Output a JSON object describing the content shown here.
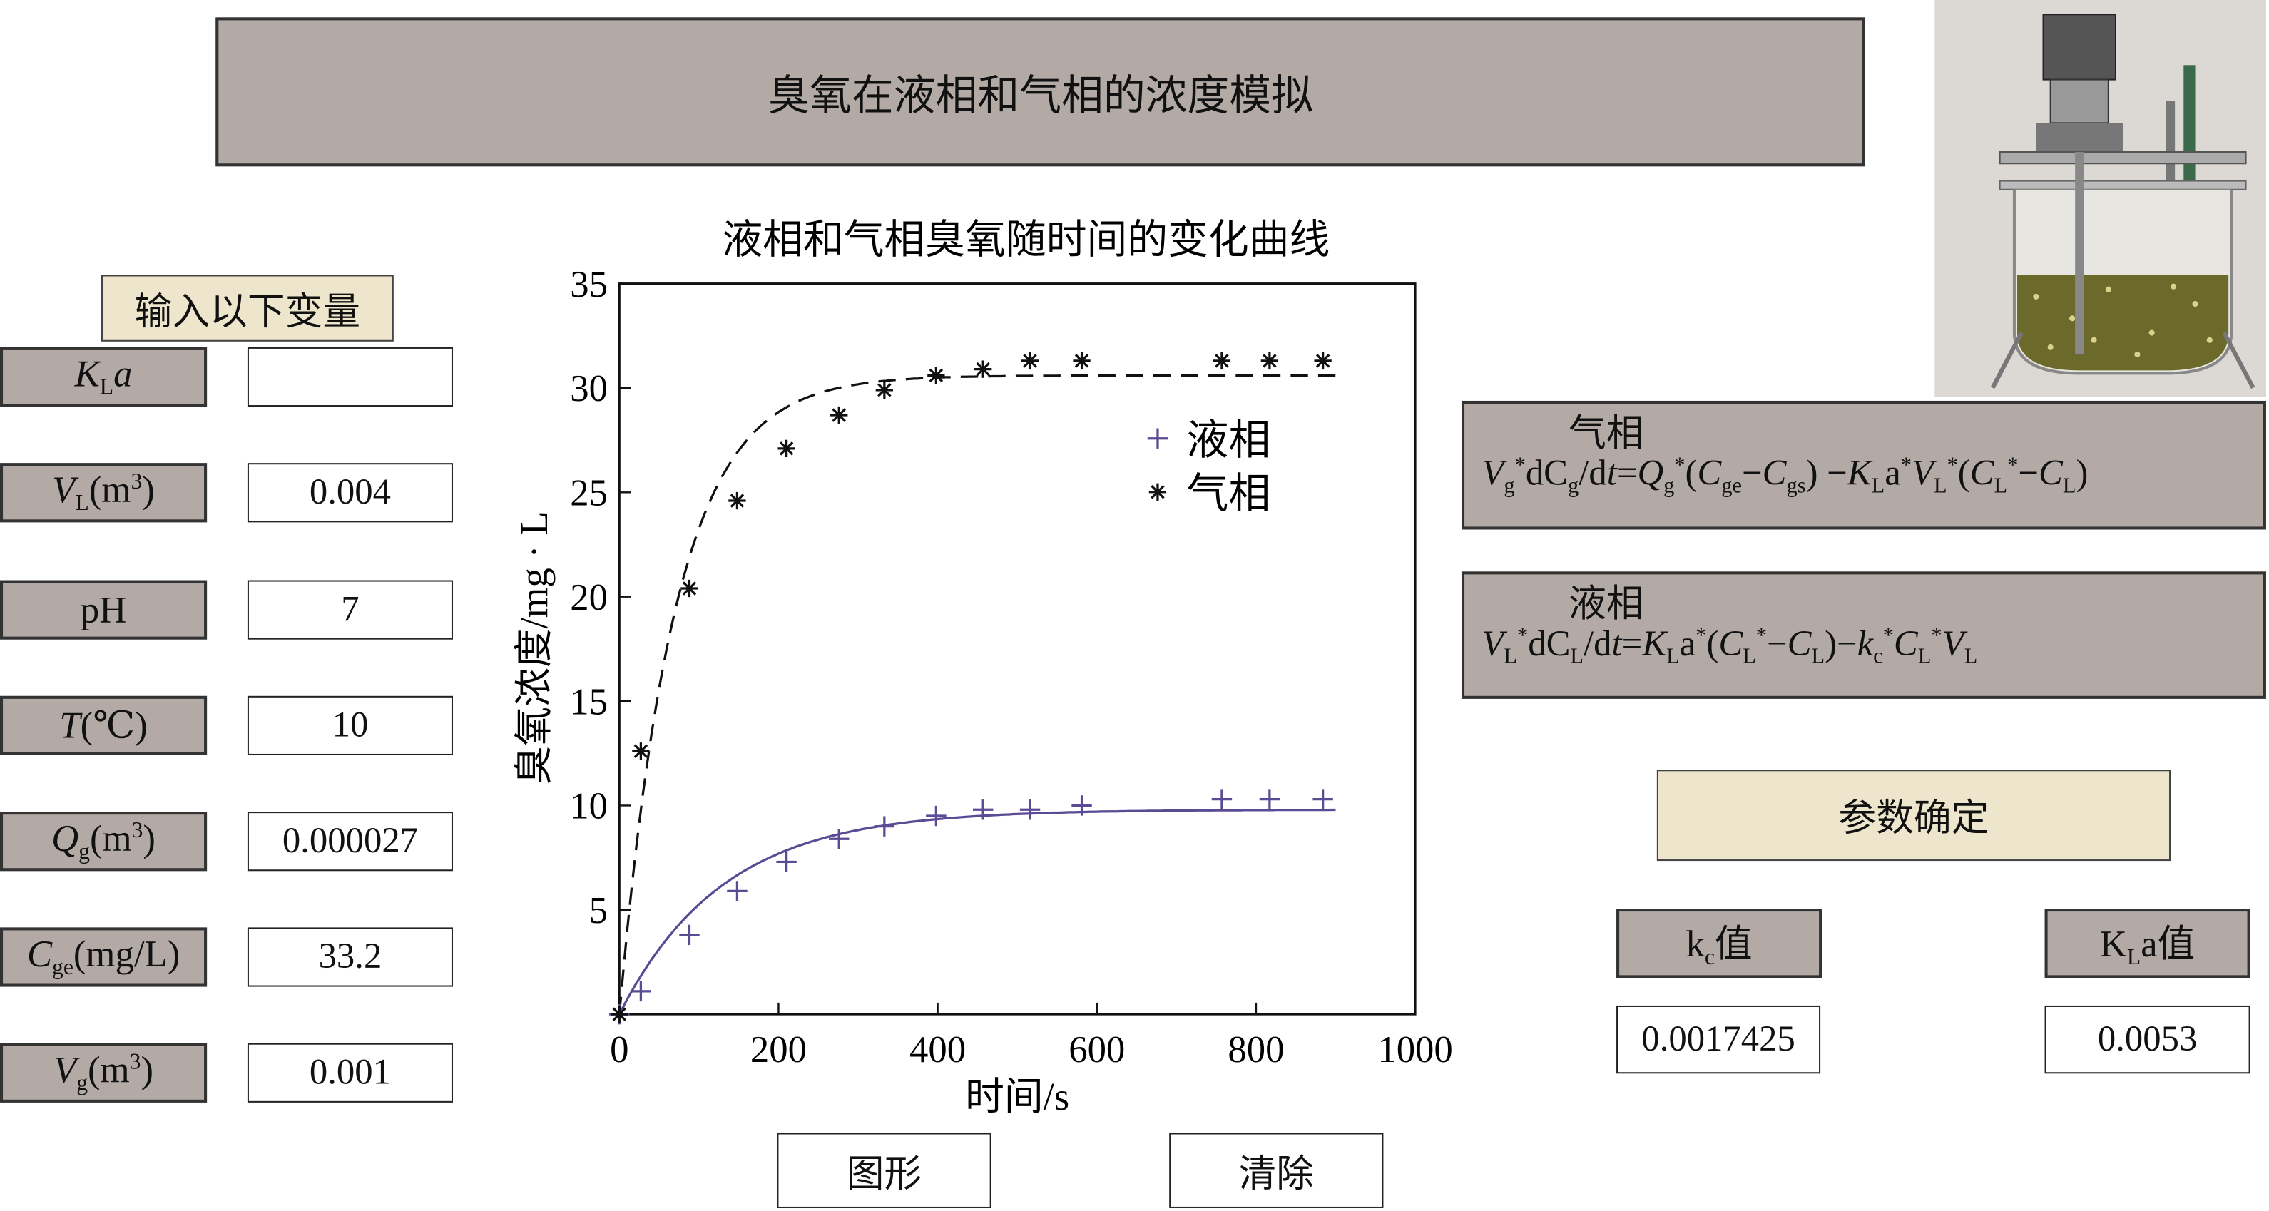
{
  "header": {
    "title": "臭氧在液相和气相的浓度模拟"
  },
  "input_section": {
    "heading": "输入以下变量"
  },
  "inputs": [
    {
      "main": "K",
      "sub": "L",
      "tail": "a",
      "sup": "",
      "end": "",
      "italic_tail": true,
      "value": ""
    },
    {
      "main": "V",
      "sub": "L",
      "tail": "(m",
      "sup": "3",
      "end": ")",
      "value": "0.004"
    },
    {
      "main": "pH",
      "sub": "",
      "tail": "",
      "sup": "",
      "end": "",
      "plain": true,
      "value": "7"
    },
    {
      "main": "T",
      "sub": "",
      "tail": "(℃)",
      "sup": "",
      "end": "",
      "value": "10"
    },
    {
      "main": "Q",
      "sub": "g",
      "tail": "(m",
      "sup": "3",
      "end": ")",
      "value": "0.000027"
    },
    {
      "main": "C",
      "sub": "ge",
      "tail": "(mg/L)",
      "sup": "",
      "end": "",
      "value": "33.2"
    },
    {
      "main": "V",
      "sub": "g",
      "tail": "(m",
      "sup": "3",
      "end": ")",
      "value": "0.001"
    }
  ],
  "equations": {
    "gas": {
      "heading": "气相",
      "tokens": [
        {
          "t": "V",
          "i": true,
          "sub": "g",
          "sup": "*"
        },
        {
          "t": "dC",
          "sub": "g"
        },
        {
          "t": "/d"
        },
        {
          "t": "t",
          "i": true
        },
        {
          "t": "="
        },
        {
          "t": "Q",
          "i": true,
          "sub": "g",
          "sup": "*"
        },
        {
          "t": "("
        },
        {
          "t": "C",
          "i": true,
          "sub": "ge"
        },
        {
          "t": "−"
        },
        {
          "t": "C",
          "i": true,
          "sub": "gs"
        },
        {
          "t": ") −"
        },
        {
          "t": "K",
          "i": true,
          "sub": "L"
        },
        {
          "t": "a",
          "sup": "*"
        },
        {
          "t": "V",
          "i": true,
          "sub": "L",
          "sup": "*"
        },
        {
          "t": "("
        },
        {
          "t": "C",
          "i": true,
          "sub": "L",
          "sup": "*"
        },
        {
          "t": "−"
        },
        {
          "t": "C",
          "i": true,
          "sub": "L"
        },
        {
          "t": ")"
        }
      ]
    },
    "liquid": {
      "heading": "液相",
      "tokens": [
        {
          "t": "V",
          "i": true,
          "sub": "L",
          "sup": "*"
        },
        {
          "t": "dC",
          "sub": "L"
        },
        {
          "t": "/d"
        },
        {
          "t": "t",
          "i": true
        },
        {
          "t": "="
        },
        {
          "t": "K",
          "i": true,
          "sub": "L"
        },
        {
          "t": "a",
          "sup": "*"
        },
        {
          "t": "("
        },
        {
          "t": "C",
          "i": true,
          "sub": "L",
          "sup": "*"
        },
        {
          "t": "−"
        },
        {
          "t": "C",
          "i": true,
          "sub": "L"
        },
        {
          "t": ")−"
        },
        {
          "t": "k",
          "i": true,
          "sub": "c",
          "sup": "*"
        },
        {
          "t": "C",
          "i": true,
          "sub": "L",
          "sup": "*"
        },
        {
          "t": "V",
          "i": true,
          "sub": "L"
        }
      ]
    }
  },
  "actions": {
    "determine_label": "参数确定",
    "plot_label": "图形",
    "clear_label": "清除"
  },
  "results": {
    "kc": {
      "main": "k",
      "sub": "c",
      "tail": "值",
      "value": "0.0017425"
    },
    "kla": {
      "main": "K",
      "sub": "L",
      "tail": "a值",
      "value": "0.0053"
    }
  },
  "colors": {
    "panel": "#b3aaa5",
    "beige": "#ede6cc",
    "liquid": "#5b4a94",
    "gas": "#111111"
  },
  "chart_data": {
    "type": "scatter",
    "title": "液相和气相臭氧随时间的变化曲线",
    "xlabel": "时间/s",
    "ylabel": "臭氧浓度/mg · L",
    "xlim": [
      0,
      1000
    ],
    "ylim": [
      0,
      35
    ],
    "xticks": [
      "0",
      "200",
      "400",
      "600",
      "800",
      "1000"
    ],
    "yticks": [
      "5",
      "10",
      "15",
      "20",
      "25",
      "30",
      "35"
    ],
    "legend_position": "top-right",
    "series": [
      {
        "name": "液相",
        "marker": "+",
        "color": "#5b4a94",
        "x": [
          0,
          27,
          88,
          148,
          210,
          276,
          333,
          398,
          457,
          516,
          581,
          757,
          817,
          884
        ],
        "y": [
          0,
          1.1,
          3.8,
          5.9,
          7.3,
          8.4,
          9.0,
          9.5,
          9.8,
          9.8,
          10.0,
          10.3,
          10.3,
          10.3
        ],
        "fit": {
          "style": "solid",
          "plateau": 9.8,
          "tau": 130,
          "xmax": 900
        }
      },
      {
        "name": "气相",
        "marker": "*",
        "color": "#111111",
        "x": [
          0,
          27,
          88,
          148,
          210,
          276,
          333,
          398,
          457,
          516,
          581,
          757,
          817,
          884
        ],
        "y": [
          0,
          12.6,
          20.4,
          24.6,
          27.1,
          28.7,
          29.9,
          30.6,
          30.9,
          31.3,
          31.3,
          31.3,
          31.3,
          31.3
        ],
        "fit": {
          "style": "dashed",
          "plateau": 30.6,
          "tau": 70,
          "xmax": 900
        }
      }
    ]
  }
}
